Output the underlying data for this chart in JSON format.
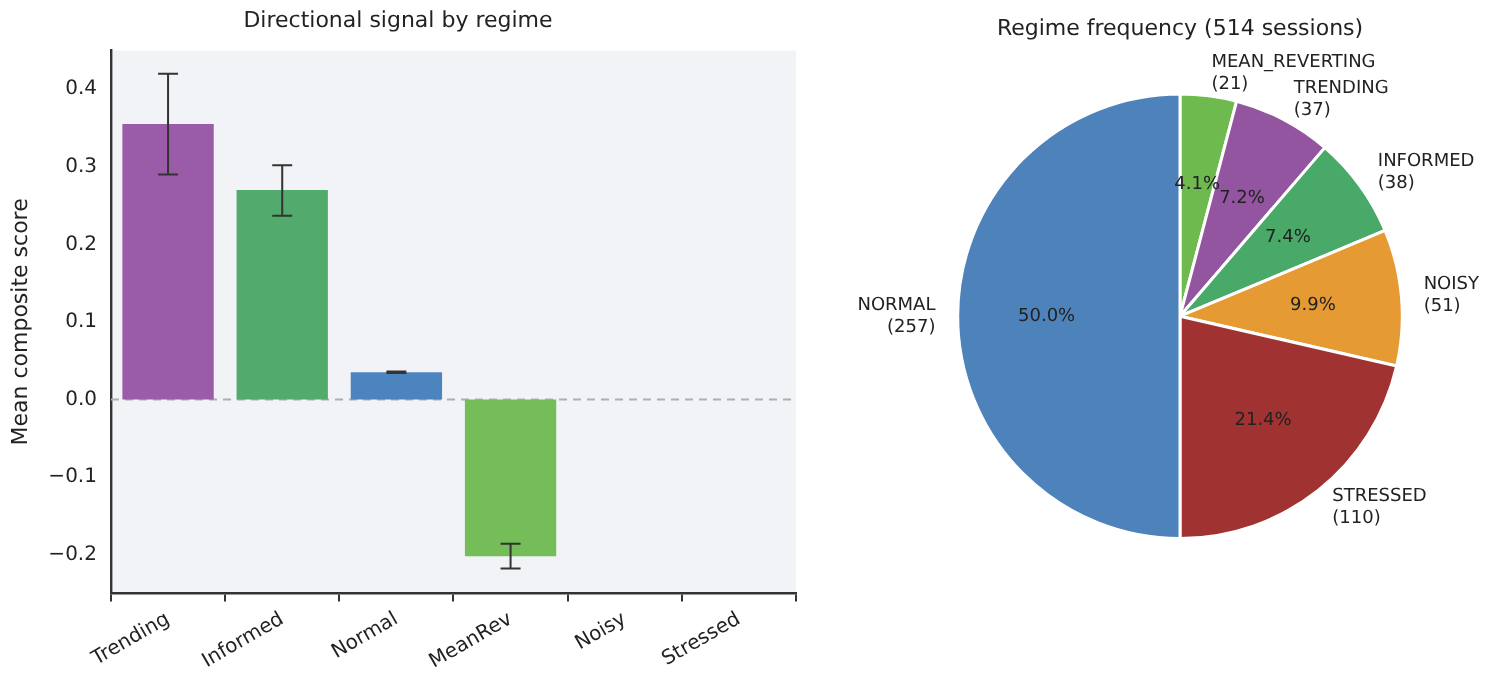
{
  "chart_data": [
    {
      "type": "bar",
      "title": "Directional signal by regime",
      "ylabel": "Mean composite score",
      "categories": [
        "Trending",
        "Informed",
        "Normal",
        "MeanRev",
        "Noisy",
        "Stressed"
      ],
      "values": [
        0.355,
        0.27,
        0.035,
        -0.202,
        0,
        0
      ],
      "colors": [
        "#9a5ca8",
        "#52ab6c",
        "#4c84bf",
        "#74bd58",
        "#e69a33",
        "#a03232"
      ],
      "errors": [
        [
          0.29,
          0.42
        ],
        [
          0.237,
          0.302
        ],
        [
          0.034,
          0.036
        ],
        [
          -0.218,
          -0.186
        ],
        null,
        null
      ],
      "ylim": [
        -0.25,
        0.45
      ],
      "yticks": [
        -0.2,
        -0.1,
        {
          "value": 0,
          "label": "0.0"
        },
        0.1,
        0.2,
        0.3,
        0.4
      ],
      "grid": false,
      "legend": false,
      "ref_lines": [
        {
          "axis": "y",
          "value": 0,
          "color": "#b0b0b0",
          "line_style": "dashed"
        }
      ]
    },
    {
      "type": "pie",
      "title": "Regime frequency (514 sessions)",
      "categories": [
        "MEAN_REVERTING (21)",
        "TRENDING (37)",
        "INFORMED (38)",
        "NOISY (51)",
        "STRESSED (110)",
        "NORMAL (257)"
      ],
      "values": [
        4.1,
        7.2,
        7.4,
        9.9,
        21.4,
        50.0
      ],
      "colors": [
        "#6fba4f",
        "#9455a0",
        "#48a968",
        "#e69a33",
        "#a03232",
        "#4d82bb"
      ],
      "value_labels": [
        "4.1%",
        "7.2%",
        "7.4%",
        "9.9%",
        "21.4%",
        "50.0%"
      ],
      "legend": false
    }
  ]
}
